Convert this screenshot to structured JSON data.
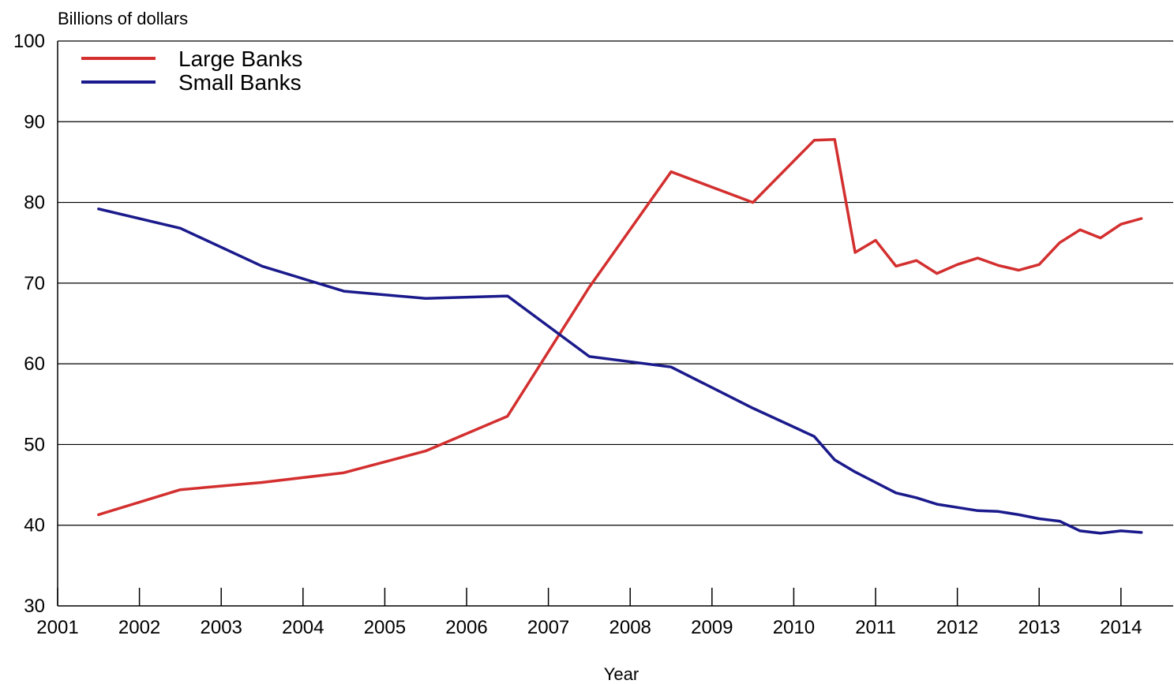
{
  "chart_data": {
    "type": "line",
    "ylabel": "Billions of dollars",
    "xlabel": "Year",
    "xlim": [
      2001,
      2014.6
    ],
    "ylim": [
      30,
      100
    ],
    "yticks": [
      30,
      40,
      50,
      60,
      70,
      80,
      90,
      100
    ],
    "xticks": [
      2001,
      2002,
      2003,
      2004,
      2005,
      2006,
      2007,
      2008,
      2009,
      2010,
      2011,
      2012,
      2013,
      2014
    ],
    "grid": "horizontal",
    "legend_position": "top-left",
    "series": [
      {
        "name": "Large Banks",
        "color": "#d32f2f",
        "x": [
          2001.5,
          2002.5,
          2003.5,
          2004.5,
          2005.5,
          2006.5,
          2007.5,
          2008.5,
          2009.5,
          2010.25,
          2010.5,
          2010.75,
          2011.0,
          2011.25,
          2011.5,
          2011.75,
          2012.0,
          2012.25,
          2012.5,
          2012.75,
          2013.0,
          2013.25,
          2013.5,
          2013.75,
          2014.0,
          2014.25
        ],
        "values": [
          41.3,
          44.4,
          45.3,
          46.5,
          49.2,
          53.5,
          69.5,
          83.8,
          80.0,
          87.7,
          87.8,
          73.8,
          75.3,
          72.1,
          72.8,
          71.2,
          72.3,
          73.1,
          72.2,
          71.6,
          72.3,
          75.0,
          76.6,
          75.6,
          77.3,
          78.0
        ]
      },
      {
        "name": "Small Banks",
        "color": "#1a1a8c",
        "x": [
          2001.5,
          2002.5,
          2003.5,
          2004.5,
          2005.5,
          2006.5,
          2007.5,
          2008.5,
          2009.5,
          2010.25,
          2010.5,
          2010.75,
          2011.0,
          2011.25,
          2011.5,
          2011.75,
          2012.0,
          2012.25,
          2012.5,
          2012.75,
          2013.0,
          2013.25,
          2013.5,
          2013.75,
          2014.0,
          2014.25
        ],
        "values": [
          79.2,
          76.8,
          72.1,
          69.0,
          68.1,
          68.4,
          60.9,
          59.6,
          54.5,
          51.0,
          48.1,
          46.6,
          45.3,
          44.0,
          43.4,
          42.6,
          42.2,
          41.8,
          41.7,
          41.3,
          40.8,
          40.5,
          39.3,
          39.0,
          39.3,
          39.1
        ]
      }
    ]
  }
}
